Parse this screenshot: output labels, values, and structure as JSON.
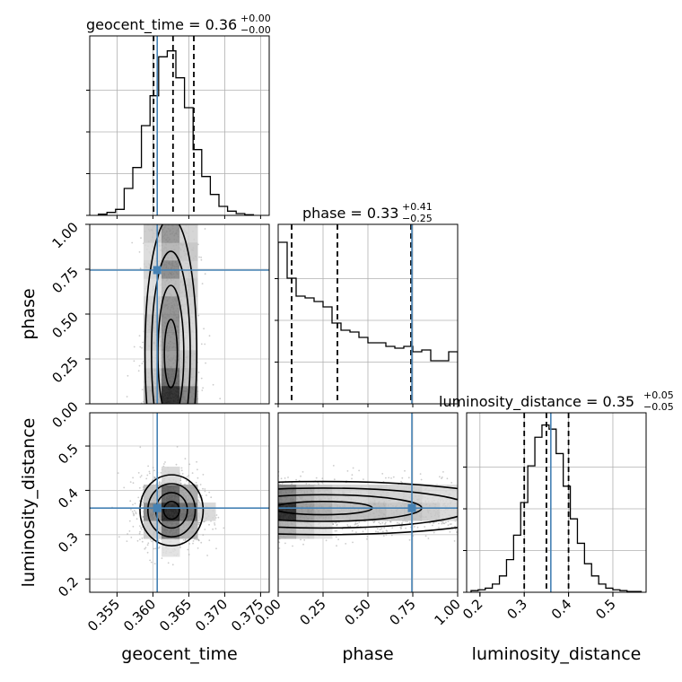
{
  "chart_data": {
    "type": "scatter",
    "figure": "corner plot",
    "parameters": [
      "geocent_time",
      "phase",
      "luminosity_distance"
    ],
    "axis_labels": {
      "geocent_time": "geocent_time",
      "phase": "phase",
      "luminosity_distance": "luminosity_distance"
    },
    "ranges": {
      "geocent_time": [
        0.3512,
        0.3762
      ],
      "phase": [
        0.0,
        1.0
      ],
      "luminosity_distance": [
        0.17,
        0.575
      ]
    },
    "ticks": {
      "geocent_time": [
        0.355,
        0.36,
        0.365,
        0.37,
        0.375
      ],
      "phase": [
        0.0,
        0.25,
        0.5,
        0.75,
        1.0
      ],
      "luminosity_distance": [
        0.2,
        0.3,
        0.4,
        0.5
      ]
    },
    "tick_labels": {
      "geocent_time": [
        "0.355",
        "0.360",
        "0.365",
        "0.370",
        "0.375"
      ],
      "phase": [
        "0.00",
        "0.25",
        "0.50",
        "0.75",
        "1.00"
      ],
      "luminosity_distance": [
        "0.2",
        "0.3",
        "0.4",
        "0.5"
      ]
    },
    "titles": {
      "geocent_time": {
        "prefix": "geocent_time = 0.36",
        "upper": "+0.00",
        "lower": "−0.00"
      },
      "phase": {
        "prefix": "phase = 0.33",
        "upper": "+0.41",
        "lower": "−0.25"
      },
      "luminosity_distance": {
        "prefix": "luminosity_distance = 0.35",
        "upper": "+0.05",
        "lower": "−0.05"
      }
    },
    "truths": {
      "geocent_time": 0.3606,
      "phase": 0.745,
      "luminosity_distance": 0.36
    },
    "quantiles": {
      "geocent_time": [
        0.3601,
        0.3628,
        0.3657
      ],
      "phase": [
        0.075,
        0.33,
        0.74
      ],
      "luminosity_distance": [
        0.3,
        0.35,
        0.4
      ]
    },
    "histograms": {
      "geocent_time": {
        "bin_edges": [
          0.3524,
          0.3536,
          0.3548,
          0.356,
          0.3572,
          0.3584,
          0.3596,
          0.3608,
          0.362,
          0.3632,
          0.3644,
          0.3656,
          0.3668,
          0.368,
          0.3692,
          0.3704,
          0.3716,
          0.3728,
          0.374
        ],
        "counts": [
          2,
          5,
          10,
          45,
          80,
          150,
          200,
          265,
          275,
          230,
          180,
          110,
          65,
          35,
          15,
          7,
          3,
          1
        ],
        "ylim": [
          0,
          300
        ]
      },
      "phase": {
        "bin_edges": [
          0.0,
          0.05,
          0.1,
          0.15,
          0.2,
          0.25,
          0.3,
          0.35,
          0.4,
          0.45,
          0.5,
          0.55,
          0.6,
          0.65,
          0.7,
          0.75,
          0.8,
          0.85,
          0.9,
          0.95,
          1.0
        ],
        "counts": [
          900,
          700,
          600,
          590,
          570,
          540,
          450,
          410,
          400,
          370,
          340,
          340,
          320,
          310,
          320,
          290,
          300,
          240,
          240,
          290
        ],
        "ylim": [
          0,
          1000
        ]
      },
      "luminosity_distance": {
        "bin_edges": [
          0.18,
          0.196,
          0.212,
          0.228,
          0.244,
          0.26,
          0.276,
          0.292,
          0.308,
          0.324,
          0.34,
          0.356,
          0.372,
          0.388,
          0.404,
          0.42,
          0.436,
          0.452,
          0.468,
          0.484,
          0.5,
          0.516,
          0.532,
          0.548,
          0.564
        ],
        "counts": [
          2,
          3,
          5,
          10,
          20,
          40,
          70,
          110,
          155,
          190,
          205,
          200,
          170,
          130,
          90,
          60,
          35,
          20,
          10,
          5,
          3,
          2,
          1,
          1
        ],
        "ylim": [
          0,
          220
        ]
      }
    },
    "pairs": [
      {
        "x": "geocent_time",
        "y": "phase",
        "center": [
          0.3625,
          0.18
        ],
        "spread": [
          0.0018,
          0.3
        ]
      },
      {
        "x": "geocent_time",
        "y": "luminosity_distance",
        "center": [
          0.3626,
          0.355
        ],
        "spread": [
          0.0022,
          0.04
        ]
      },
      {
        "x": "phase",
        "y": "luminosity_distance",
        "center": [
          0.2,
          0.36
        ],
        "spread": [
          0.35,
          0.03
        ]
      }
    ],
    "grid": true,
    "colors": {
      "truth": "#4682b4",
      "hist": "#000000",
      "points": "#999999"
    }
  }
}
